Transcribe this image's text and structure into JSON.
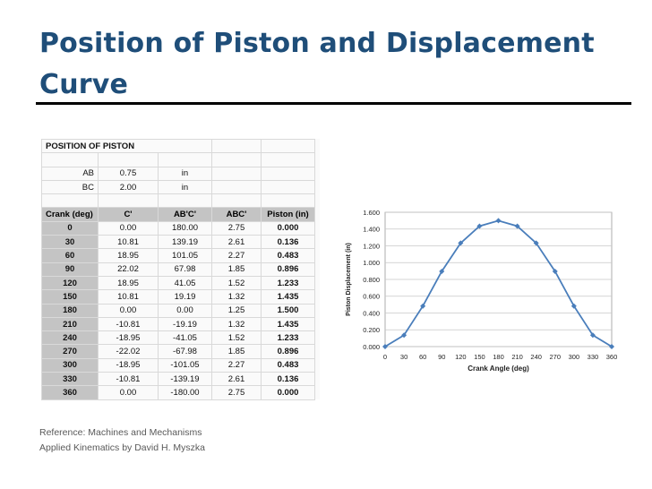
{
  "slide": {
    "title": "Position of Piston and Displacement Curve",
    "reference": "Reference: Machines and Mechanisms Applied Kinematics by David H. Myszka"
  },
  "table": {
    "section_title": "POSITION OF PISTON",
    "params": [
      {
        "label": "AB",
        "value": "0.75",
        "unit": "in"
      },
      {
        "label": "BC",
        "value": "2.00",
        "unit": "in"
      }
    ],
    "headers": [
      "Crank (deg)",
      "C'",
      "AB'C'",
      "ABC'",
      "Piston (in)"
    ],
    "rows": [
      [
        "0",
        "0.00",
        "180.00",
        "2.75",
        "0.000"
      ],
      [
        "30",
        "10.81",
        "139.19",
        "2.61",
        "0.136"
      ],
      [
        "60",
        "18.95",
        "101.05",
        "2.27",
        "0.483"
      ],
      [
        "90",
        "22.02",
        "67.98",
        "1.85",
        "0.896"
      ],
      [
        "120",
        "18.95",
        "41.05",
        "1.52",
        "1.233"
      ],
      [
        "150",
        "10.81",
        "19.19",
        "1.32",
        "1.435"
      ],
      [
        "180",
        "0.00",
        "0.00",
        "1.25",
        "1.500"
      ],
      [
        "210",
        "-10.81",
        "-19.19",
        "1.32",
        "1.435"
      ],
      [
        "240",
        "-18.95",
        "-41.05",
        "1.52",
        "1.233"
      ],
      [
        "270",
        "-22.02",
        "-67.98",
        "1.85",
        "0.896"
      ],
      [
        "300",
        "-18.95",
        "-101.05",
        "2.27",
        "0.483"
      ],
      [
        "330",
        "-10.81",
        "-139.19",
        "2.61",
        "0.136"
      ],
      [
        "360",
        "0.00",
        "-180.00",
        "2.75",
        "0.000"
      ]
    ]
  },
  "chart_data": {
    "type": "line",
    "title": "",
    "xlabel": "Crank Angle (deg)",
    "ylabel": "Piston Displacement (in)",
    "x": [
      0,
      30,
      60,
      90,
      120,
      150,
      180,
      210,
      240,
      270,
      300,
      330,
      360
    ],
    "series": [
      {
        "values": [
          0.0,
          0.136,
          0.483,
          0.896,
          1.233,
          1.435,
          1.5,
          1.435,
          1.233,
          0.896,
          0.483,
          0.136,
          0.0
        ]
      }
    ],
    "ylim": [
      0,
      1.6
    ],
    "xlim": [
      0,
      360
    ],
    "yticks": [
      "0.000",
      "0.200",
      "0.400",
      "0.600",
      "0.800",
      "1.000",
      "1.200",
      "1.400",
      "1.600"
    ],
    "xticks": [
      "0",
      "30",
      "60",
      "90",
      "120",
      "150",
      "180",
      "210",
      "240",
      "270",
      "300",
      "330",
      "360"
    ],
    "grid": "horizontal",
    "legend": "none",
    "series_color": "#4a7ebb",
    "gridline_color": "#c8c8c8"
  }
}
